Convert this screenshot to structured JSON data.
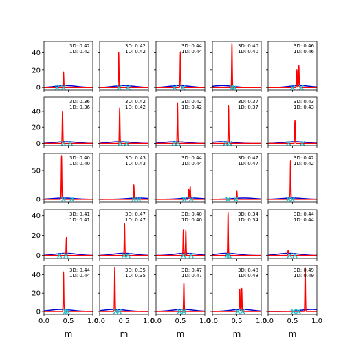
{
  "chart_data": {
    "type": "line",
    "title": "",
    "layout": {
      "rows": 5,
      "cols": 5
    },
    "xlabel": "m",
    "xlim": [
      0.0,
      1.0
    ],
    "x_ticks": [
      "0.0",
      "0.5",
      "1.0"
    ],
    "colors": {
      "peak_curve": "#ff0000",
      "broad_curve": "#0000cc",
      "marker": "#17c0cc"
    },
    "rows": [
      {
        "ylim": [
          -3,
          53
        ],
        "y_ticks": [
          "0",
          "20",
          "40"
        ]
      },
      {
        "ylim": [
          -3,
          58
        ],
        "y_ticks": [
          "0",
          "20",
          "40"
        ]
      },
      {
        "ylim": [
          -5,
          80
        ],
        "y_ticks": [
          "0",
          "50"
        ]
      },
      {
        "ylim": [
          -3,
          46
        ],
        "y_ticks": [
          "0",
          "20",
          "40"
        ]
      },
      {
        "ylim": [
          -3,
          50
        ],
        "y_ticks": [
          "0",
          "20",
          "40"
        ]
      }
    ],
    "panels": [
      {
        "annot_3d": "3D: 0.42",
        "annot_1d": "1D: 0.42",
        "peaks": [
          {
            "center": 0.4,
            "height": 18
          }
        ],
        "broad_center": 0.45,
        "markers": [
          0.27,
          0.4
        ]
      },
      {
        "annot_3d": "3D: 0.42",
        "annot_1d": "1D: 0.42",
        "peaks": [
          {
            "center": 0.39,
            "height": 40
          }
        ],
        "broad_center": 0.5,
        "markers": [
          0.4,
          0.58
        ]
      },
      {
        "annot_3d": "3D: 0.44",
        "annot_1d": "1D: 0.44",
        "peaks": [
          {
            "center": 0.5,
            "height": 41
          }
        ],
        "broad_center": 0.48,
        "markers": [
          0.38,
          0.55
        ]
      },
      {
        "annot_3d": "3D: 0.40",
        "annot_1d": "1D: 0.40",
        "peaks": [
          {
            "center": 0.4,
            "height": 50
          }
        ],
        "broad_center": 0.2,
        "markers": [
          0.4,
          0.45
        ]
      },
      {
        "annot_3d": "3D: 0.46",
        "annot_1d": "1D: 0.46",
        "peaks": [
          {
            "center": 0.59,
            "height": 20
          },
          {
            "center": 0.63,
            "height": 25
          }
        ],
        "broad_center": 0.65,
        "markers": [
          0.5,
          0.68
        ]
      },
      {
        "annot_3d": "3D: 0.36",
        "annot_1d": "1D: 0.36",
        "peaks": [
          {
            "center": 0.38,
            "height": 40
          }
        ],
        "broad_center": 0.45,
        "markers": [
          0.4,
          0.54
        ]
      },
      {
        "annot_3d": "3D: 0.42",
        "annot_1d": "1D: 0.42",
        "peaks": [
          {
            "center": 0.41,
            "height": 44
          }
        ],
        "broad_center": 0.42,
        "markers": [
          0.42,
          0.55
        ]
      },
      {
        "annot_3d": "3D: 0.42",
        "annot_1d": "1D: 0.42",
        "peaks": [
          {
            "center": 0.44,
            "height": 50
          }
        ],
        "broad_center": 0.4,
        "markers": [
          0.37,
          0.45
        ]
      },
      {
        "annot_3d": "3D: 0.37",
        "annot_1d": "1D: 0.37",
        "peaks": [
          {
            "center": 0.33,
            "height": 47
          }
        ],
        "broad_center": 0.2,
        "markers": [
          0.27,
          0.35
        ]
      },
      {
        "annot_3d": "3D: 0.43",
        "annot_1d": "1D: 0.43",
        "peaks": [
          {
            "center": 0.55,
            "height": 29
          }
        ],
        "broad_center": 0.55,
        "markers": [
          0.42,
          0.7
        ]
      },
      {
        "annot_3d": "3D: 0.40",
        "annot_1d": "1D: 0.40",
        "peaks": [
          {
            "center": 0.36,
            "height": 75
          }
        ],
        "broad_center": 0.4,
        "markers": [
          0.4,
          0.57
        ]
      },
      {
        "annot_3d": "3D: 0.43",
        "annot_1d": "1D: 0.43",
        "peaks": [
          {
            "center": 0.7,
            "height": 25
          }
        ],
        "broad_center": 0.8,
        "markers": [
          0.7,
          0.8
        ]
      },
      {
        "annot_3d": "3D: 0.44",
        "annot_1d": "1D: 0.44",
        "peaks": [
          {
            "center": 0.67,
            "height": 17
          },
          {
            "center": 0.7,
            "height": 22
          }
        ],
        "broad_center": 0.72,
        "markers": [
          0.58,
          0.72
        ]
      },
      {
        "annot_3d": "3D: 0.47",
        "annot_1d": "1D: 0.47",
        "peaks": [
          {
            "center": 0.5,
            "height": 14
          }
        ],
        "broad_center": 0.65,
        "markers": [
          0.32,
          0.48
        ]
      },
      {
        "annot_3d": "3D: 0.42",
        "annot_1d": "1D: 0.42",
        "peaks": [
          {
            "center": 0.46,
            "height": 67
          }
        ],
        "broad_center": 0.5,
        "markers": [
          0.42,
          0.5
        ]
      },
      {
        "annot_3d": "3D: 0.41",
        "annot_1d": "1D: 0.41",
        "peaks": [
          {
            "center": 0.46,
            "height": 18
          }
        ],
        "broad_center": 0.45,
        "markers": [
          0.32,
          0.45
        ]
      },
      {
        "annot_3d": "3D: 0.47",
        "annot_1d": "1D: 0.47",
        "peaks": [
          {
            "center": 0.51,
            "height": 32
          }
        ],
        "broad_center": 0.5,
        "markers": [
          0.5,
          0.58
        ]
      },
      {
        "annot_3d": "3D: 0.40",
        "annot_1d": "1D: 0.40",
        "peaks": [
          {
            "center": 0.56,
            "height": 26
          },
          {
            "center": 0.61,
            "height": 25
          }
        ],
        "broad_center": 0.6,
        "markers": [
          0.56,
          0.72
        ]
      },
      {
        "annot_3d": "3D: 0.34",
        "annot_1d": "1D: 0.34",
        "peaks": [
          {
            "center": 0.32,
            "height": 43
          }
        ],
        "broad_center": 0.3,
        "markers": [
          0.3,
          0.34
        ]
      },
      {
        "annot_3d": "3D: 0.44",
        "annot_1d": "1D: 0.44",
        "peaks": [
          {
            "center": 0.41,
            "height": 5
          }
        ],
        "broad_center": 0.42,
        "markers": [
          0.44,
          0.55
        ]
      },
      {
        "annot_3d": "3D: 0.44",
        "annot_1d": "1D: 0.44",
        "peaks": [
          {
            "center": 0.4,
            "height": 43
          }
        ],
        "broad_center": 0.35,
        "markers": [
          0.44,
          0.48
        ]
      },
      {
        "annot_3d": "3D: 0.35",
        "annot_1d": "1D: 0.35",
        "peaks": [
          {
            "center": 0.31,
            "height": 48
          }
        ],
        "broad_center": 0.3,
        "markers": [
          0.33,
          0.4
        ]
      },
      {
        "annot_3d": "3D: 0.47",
        "annot_1d": "1D: 0.47",
        "peaks": [
          {
            "center": 0.57,
            "height": 31
          }
        ],
        "broad_center": 0.55,
        "markers": [
          0.48,
          0.57
        ]
      },
      {
        "annot_3d": "3D: 0.48",
        "annot_1d": "1D: 0.48",
        "peaks": [
          {
            "center": 0.56,
            "height": 24
          },
          {
            "center": 0.6,
            "height": 25
          }
        ],
        "broad_center": 0.6,
        "markers": [
          0.52,
          0.62
        ]
      },
      {
        "annot_3d": "3D: 0.49",
        "annot_1d": "1D: 0.49",
        "peaks": [
          {
            "center": 0.76,
            "height": 47
          }
        ],
        "broad_center": 0.9,
        "markers": [
          0.52,
          0.62
        ]
      }
    ]
  }
}
